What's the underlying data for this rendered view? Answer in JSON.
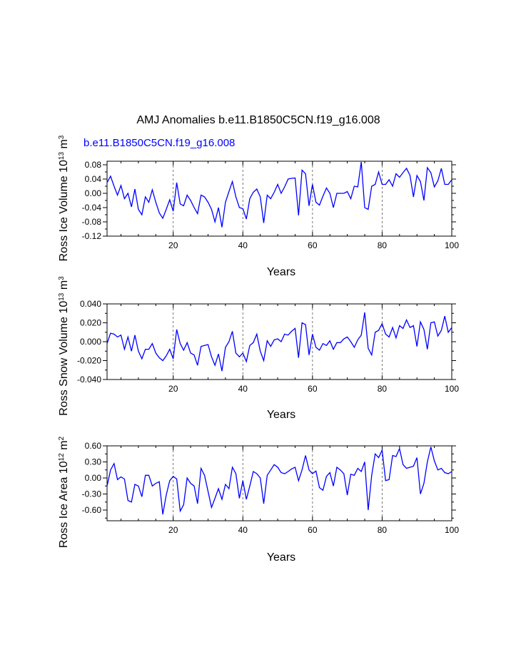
{
  "figure": {
    "title": "AMJ Anomalies b.e11.B1850C5CN.f19_g16.008",
    "case_label": "b.e11.B1850C5CN.f19_g16.008",
    "line_color": "#0000ff"
  },
  "chart_data": [
    {
      "type": "line",
      "ylabel_main": "Ross Ice Volume 10",
      "ylabel_exp": "13",
      "ylabel_unit": " m",
      "ylabel_unit_exp": "3",
      "xlabel": "Years",
      "xlim": [
        1,
        100
      ],
      "ylim": [
        -0.12,
        0.09
      ],
      "xticks": [
        20,
        40,
        60,
        80,
        100
      ],
      "yticks": [
        -0.12,
        -0.08,
        -0.04,
        0.0,
        0.04,
        0.08
      ],
      "ytick_labels": [
        "-0.12",
        "-0.08",
        "-0.04",
        "0.00",
        "0.04",
        "0.08"
      ],
      "yminor": [
        -0.1,
        -0.06,
        -0.02,
        0.02,
        0.06
      ],
      "vlines": [
        20,
        40,
        60,
        80
      ],
      "series": [
        {
          "name": "b.e11.B1850C5CN.f19_g16.008",
          "x_start": 1,
          "values": [
            0.03,
            0.048,
            0.02,
            -0.005,
            0.022,
            -0.015,
            0.0,
            -0.038,
            0.012,
            -0.045,
            -0.06,
            -0.01,
            -0.025,
            0.01,
            -0.025,
            -0.055,
            -0.07,
            -0.045,
            -0.018,
            -0.05,
            0.03,
            -0.03,
            -0.035,
            -0.005,
            -0.02,
            -0.04,
            -0.057,
            -0.005,
            -0.01,
            -0.025,
            -0.045,
            -0.08,
            -0.04,
            -0.095,
            -0.025,
            0.005,
            0.033,
            -0.01,
            -0.04,
            -0.043,
            -0.072,
            -0.015,
            0.003,
            0.012,
            -0.01,
            -0.083,
            -0.005,
            -0.015,
            0.003,
            0.025,
            0.0,
            0.018,
            0.04,
            0.042,
            0.043,
            -0.062,
            0.065,
            0.055,
            -0.035,
            0.025,
            -0.025,
            -0.033,
            -0.008,
            0.015,
            0.0,
            -0.04,
            0.0,
            0.0,
            0.0,
            0.005,
            -0.015,
            0.02,
            0.018,
            0.088,
            -0.04,
            -0.045,
            0.02,
            0.025,
            0.06,
            0.025,
            0.025,
            0.038,
            0.02,
            0.055,
            0.045,
            0.058,
            0.07,
            0.05,
            -0.01,
            0.05,
            0.033,
            -0.02,
            0.072,
            0.058,
            0.018,
            0.035,
            0.07,
            0.025,
            0.025,
            0.038
          ]
        }
      ]
    },
    {
      "type": "line",
      "ylabel_main": "Ross Snow Volume 10",
      "ylabel_exp": "13",
      "ylabel_unit": " m",
      "ylabel_unit_exp": "3",
      "xlabel": "Years",
      "xlim": [
        1,
        100
      ],
      "ylim": [
        -0.04,
        0.04
      ],
      "xticks": [
        20,
        40,
        60,
        80,
        100
      ],
      "yticks": [
        -0.04,
        -0.02,
        0.0,
        0.02,
        0.04
      ],
      "ytick_labels": [
        "-0.040",
        "-0.020",
        "0.000",
        "0.020",
        "0.040"
      ],
      "yminor": [
        -0.03,
        -0.01,
        0.01,
        0.03
      ],
      "vlines": [
        20,
        40,
        60,
        80
      ],
      "series": [
        {
          "name": "b.e11.B1850C5CN.f19_g16.008",
          "x_start": 1,
          "values": [
            -0.002,
            0.009,
            0.008,
            0.005,
            0.007,
            -0.008,
            0.005,
            -0.01,
            0.007,
            -0.01,
            -0.018,
            -0.008,
            -0.008,
            -0.002,
            -0.012,
            -0.017,
            -0.02,
            -0.015,
            -0.008,
            -0.018,
            0.013,
            -0.002,
            -0.009,
            -0.001,
            -0.012,
            -0.014,
            -0.025,
            -0.005,
            -0.004,
            -0.003,
            -0.016,
            -0.025,
            -0.013,
            -0.031,
            -0.006,
            0.0,
            0.011,
            -0.012,
            -0.016,
            -0.012,
            -0.021,
            -0.004,
            -0.001,
            0.008,
            -0.01,
            -0.02,
            0.001,
            -0.005,
            0.002,
            0.003,
            0.0,
            0.008,
            0.007,
            0.011,
            0.014,
            -0.017,
            0.02,
            0.018,
            -0.014,
            0.008,
            -0.006,
            -0.009,
            -0.002,
            -0.004,
            0.001,
            -0.008,
            -0.001,
            -0.001,
            0.003,
            0.005,
            0.0,
            -0.006,
            0.002,
            0.007,
            0.031,
            -0.007,
            -0.014,
            0.01,
            0.012,
            0.019,
            0.008,
            0.005,
            0.015,
            0.004,
            0.017,
            0.014,
            0.023,
            0.015,
            0.017,
            -0.005,
            0.021,
            0.013,
            -0.008,
            0.02,
            0.021,
            0.006,
            0.012,
            0.027,
            0.01,
            0.015
          ]
        }
      ]
    },
    {
      "type": "line",
      "ylabel_main": "Ross Ice Area 10",
      "ylabel_exp": "12",
      "ylabel_unit": " m",
      "ylabel_unit_exp": "2",
      "xlabel": "Years",
      "xlim": [
        1,
        100
      ],
      "ylim": [
        -0.8,
        0.6
      ],
      "xticks": [
        20,
        40,
        60,
        80,
        100
      ],
      "yticks": [
        -0.6,
        -0.3,
        0.0,
        0.3,
        0.6
      ],
      "ytick_labels": [
        "-0.60",
        "-0.30",
        "0.00",
        "0.30",
        "0.60"
      ],
      "yminor": [
        -0.75,
        -0.45,
        -0.15,
        0.15,
        0.45
      ],
      "vlines": [
        20,
        40,
        60,
        80
      ],
      "series": [
        {
          "name": "b.e11.B1850C5CN.f19_g16.008",
          "x_start": 1,
          "values": [
            -0.15,
            0.15,
            0.27,
            -0.03,
            0.02,
            -0.02,
            -0.42,
            -0.45,
            -0.12,
            -0.15,
            -0.35,
            0.05,
            0.05,
            -0.15,
            -0.1,
            -0.07,
            -0.68,
            -0.32,
            -0.05,
            0.03,
            -0.02,
            -0.62,
            -0.5,
            0.0,
            -0.1,
            -0.15,
            -0.48,
            0.18,
            0.05,
            -0.25,
            -0.55,
            -0.38,
            -0.2,
            -0.4,
            -0.12,
            -0.2,
            0.2,
            0.08,
            -0.38,
            -0.05,
            -0.4,
            -0.15,
            0.12,
            0.08,
            0.0,
            -0.48,
            0.05,
            0.15,
            0.25,
            0.2,
            0.1,
            0.08,
            0.12,
            0.17,
            0.2,
            -0.05,
            0.15,
            0.42,
            0.15,
            0.08,
            0.13,
            -0.18,
            -0.23,
            0.03,
            0.1,
            -0.15,
            0.2,
            0.15,
            0.08,
            -0.32,
            0.07,
            0.05,
            0.18,
            0.12,
            0.3,
            -0.6,
            0.05,
            0.45,
            0.38,
            0.52,
            -0.05,
            -0.03,
            0.42,
            0.4,
            0.55,
            0.25,
            0.18,
            0.2,
            0.22,
            0.38,
            -0.3,
            -0.1,
            0.3,
            0.58,
            0.32,
            0.15,
            0.18,
            0.1,
            0.08,
            0.12
          ]
        }
      ]
    }
  ]
}
